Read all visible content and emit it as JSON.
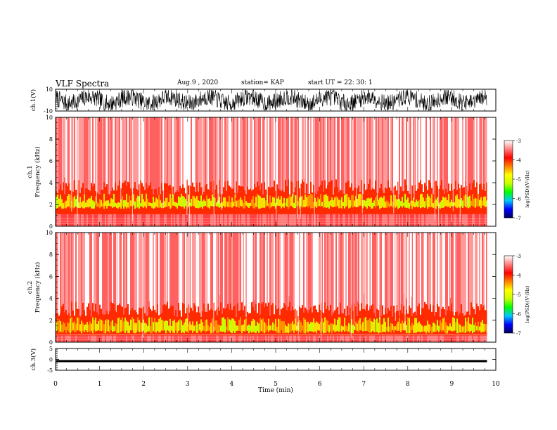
{
  "header": {
    "title": "VLF Spectra",
    "date": "Aug.9  , 2020",
    "station": "station= KAP",
    "start_ut": "start  UT =   22: 30: 1"
  },
  "chart_data": [
    {
      "type": "line",
      "id": "ch1-waveform",
      "ylabel": "ch.1(V)",
      "xlim": [
        0,
        10
      ],
      "ylim": [
        -10,
        10
      ],
      "yticks": [
        "10",
        "-10"
      ],
      "description_values": {
        "x_start": 0,
        "x_end": 9.8
      }
    },
    {
      "type": "heatmap",
      "id": "ch1-spectrogram",
      "ylabel": "ch.1\nFrequency  (kHz)",
      "ylim": [
        0,
        10
      ],
      "yticks": [
        "0",
        "2",
        "4",
        "6",
        "8",
        "10"
      ],
      "xlim": [
        0,
        10
      ],
      "x_end": 9.8,
      "colorbar": {
        "label": "log(PSD)(V²/Hz)",
        "range": [
          -7,
          -3
        ],
        "ticks": [
          "-3",
          "-4",
          "-5",
          "-6",
          "-7"
        ],
        "colors": [
          "#000060",
          "#0000ff",
          "#00c8ff",
          "#00ff00",
          "#c8ff00",
          "#ffff00",
          "#ff8000",
          "#ff0000",
          "#ff8080",
          "#ffffff"
        ]
      },
      "band": {
        "lower_khz": 1.1,
        "upper_khz": 3.6,
        "strong_core_khz": [
          1.6,
          3.0
        ]
      }
    },
    {
      "type": "heatmap",
      "id": "ch2-spectrogram",
      "ylabel": "ch.2\nFrequency  (kHz)",
      "ylim": [
        0,
        10
      ],
      "yticks": [
        "0",
        "2",
        "4",
        "6",
        "8",
        "10"
      ],
      "xlim": [
        0,
        10
      ],
      "x_end": 9.8,
      "colorbar": {
        "label": "log(PSD)(V²/Hz)",
        "range": [
          -7,
          -3
        ],
        "ticks": [
          "-3",
          "-4",
          "-5",
          "-6",
          "-7"
        ],
        "colors": [
          "#000060",
          "#0000ff",
          "#00c8ff",
          "#00ff00",
          "#c8ff00",
          "#ffff00",
          "#ff8000",
          "#ff0000",
          "#ff8080",
          "#ffffff"
        ]
      },
      "band": {
        "lower_khz": 0.6,
        "upper_khz": 3.0,
        "strong_core_khz": [
          0.8,
          2.3
        ]
      }
    },
    {
      "type": "line",
      "id": "ch3-waveform",
      "ylabel": "ch.3(V)",
      "xlim": [
        0,
        10
      ],
      "ylim": [
        -5,
        5
      ],
      "yticks": [
        "5",
        "0",
        "-5"
      ],
      "level_v": [
        -1.3,
        -0.3
      ],
      "x_end": 9.8
    }
  ],
  "xaxis": {
    "label": "Time  (min)",
    "ticks": [
      "0",
      "1",
      "2",
      "3",
      "4",
      "5",
      "6",
      "7",
      "8",
      "9",
      "10"
    ]
  }
}
